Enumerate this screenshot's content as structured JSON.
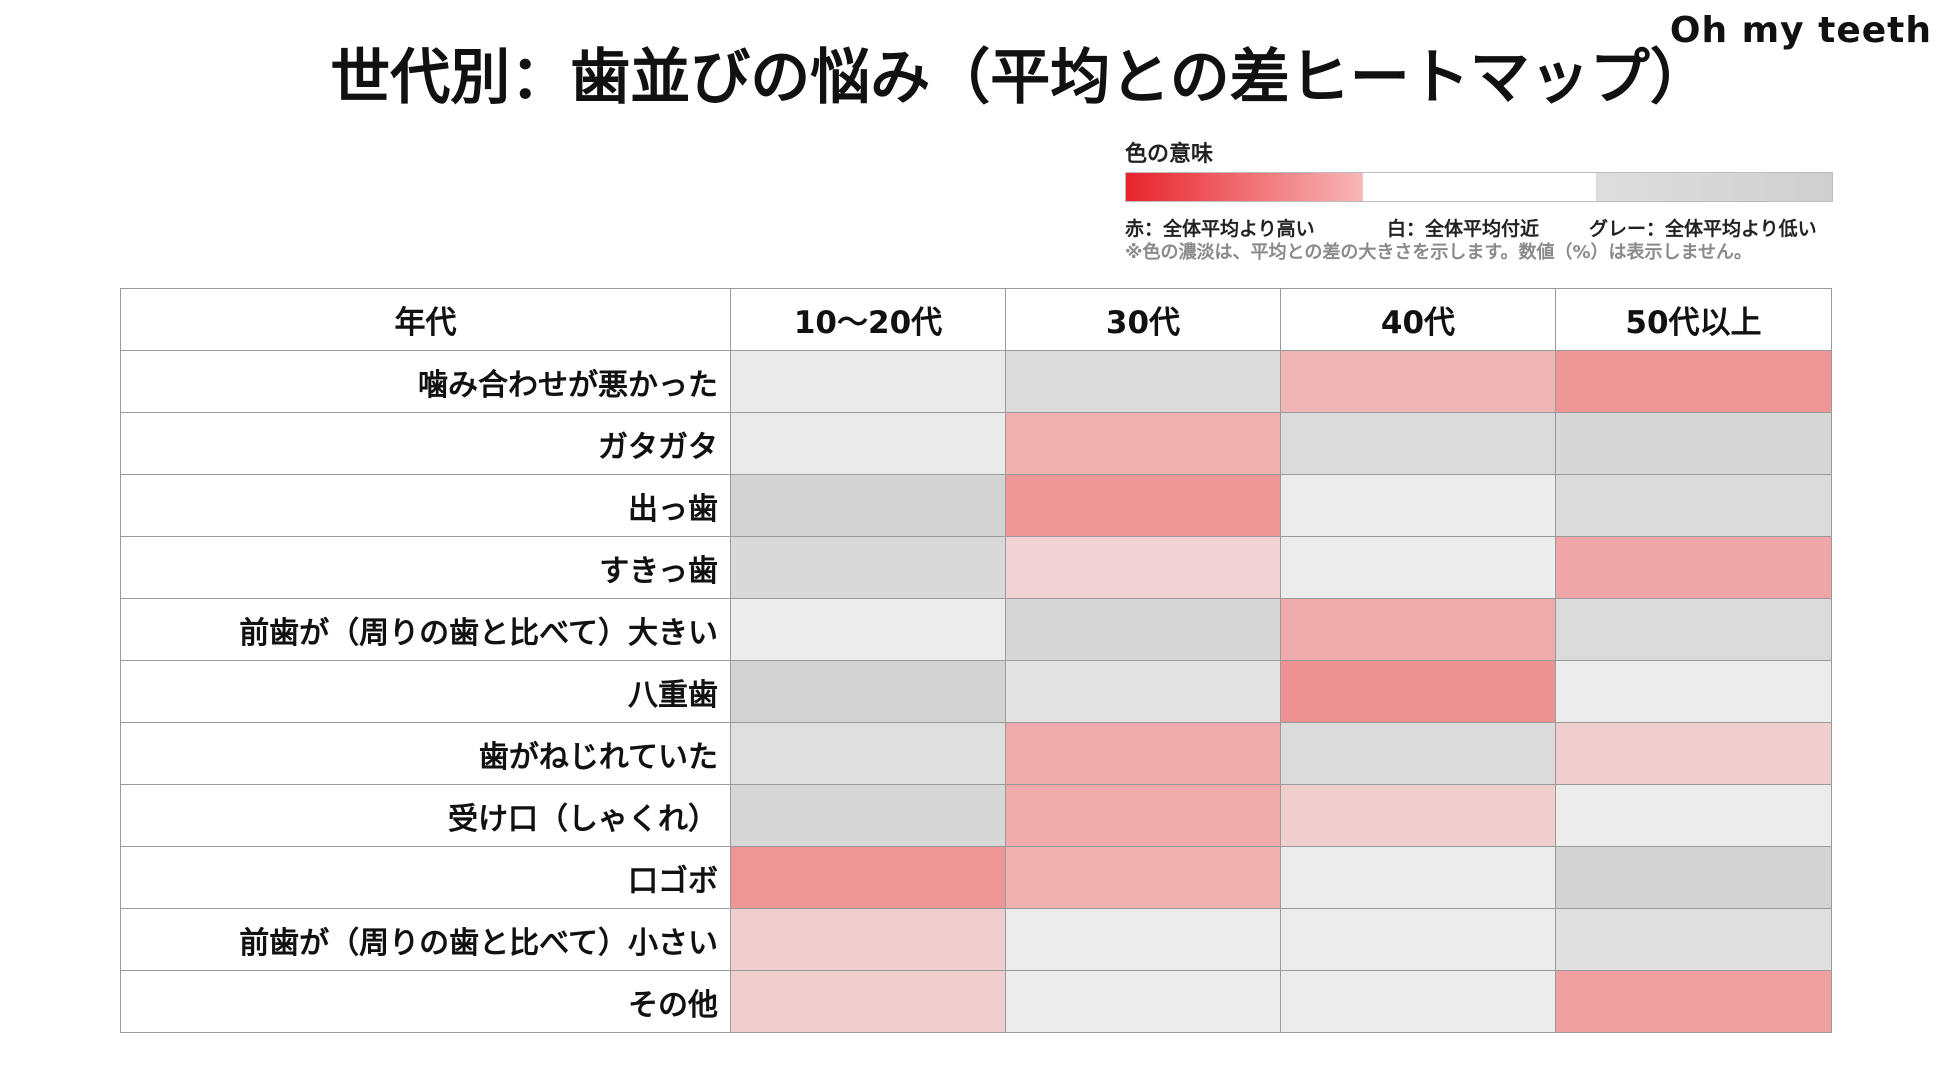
{
  "brand": "Oh my teeth",
  "chart_data": {
    "type": "heatmap",
    "title": "世代別：歯並びの悩み（平均との差ヒートマップ）",
    "corner_header": "年代",
    "columns": [
      "10〜20代",
      "30代",
      "40代",
      "50代以上"
    ],
    "rows": [
      "噛み合わせが悪かった",
      "ガタガタ",
      "出っ歯",
      "すきっ歯",
      "前歯が（周りの歯と比べて）大きい",
      "八重歯",
      "歯がねじれていた",
      "受け口（しゃくれ）",
      "口ゴボ",
      "前歯が（周りの歯と比べて）小さい",
      "その他"
    ],
    "values": [
      [
        -0.2,
        -0.6,
        0.6,
        0.9
      ],
      [
        -0.2,
        0.65,
        -0.6,
        -0.7
      ],
      [
        -0.8,
        0.9,
        -0.15,
        -0.6
      ],
      [
        -0.65,
        0.3,
        -0.15,
        0.75
      ],
      [
        -0.15,
        -0.7,
        0.7,
        -0.6
      ],
      [
        -0.8,
        -0.35,
        0.95,
        -0.15
      ],
      [
        -0.5,
        0.7,
        -0.6,
        0.35
      ],
      [
        -0.7,
        0.7,
        0.35,
        -0.15
      ],
      [
        0.9,
        0.65,
        -0.15,
        -0.8
      ],
      [
        0.35,
        -0.15,
        -0.15,
        -0.5
      ],
      [
        0.35,
        -0.15,
        -0.15,
        0.8
      ]
    ],
    "value_meaning": "difference from overall average (sign and relative magnitude only; no % shown)",
    "legend": {
      "title": "色の意味",
      "red_label": "赤：全体平均より高い",
      "white_label": "白：全体平均付近",
      "gray_label": "グレー：全体平均より低い",
      "note": "※色の濃淡は、平均との差の大きさを示します。数値（%）は表示しません。",
      "red_color": "#ee8c8c",
      "white_color": "#f2f2f2",
      "gray_color": "#cbcbcb"
    }
  }
}
